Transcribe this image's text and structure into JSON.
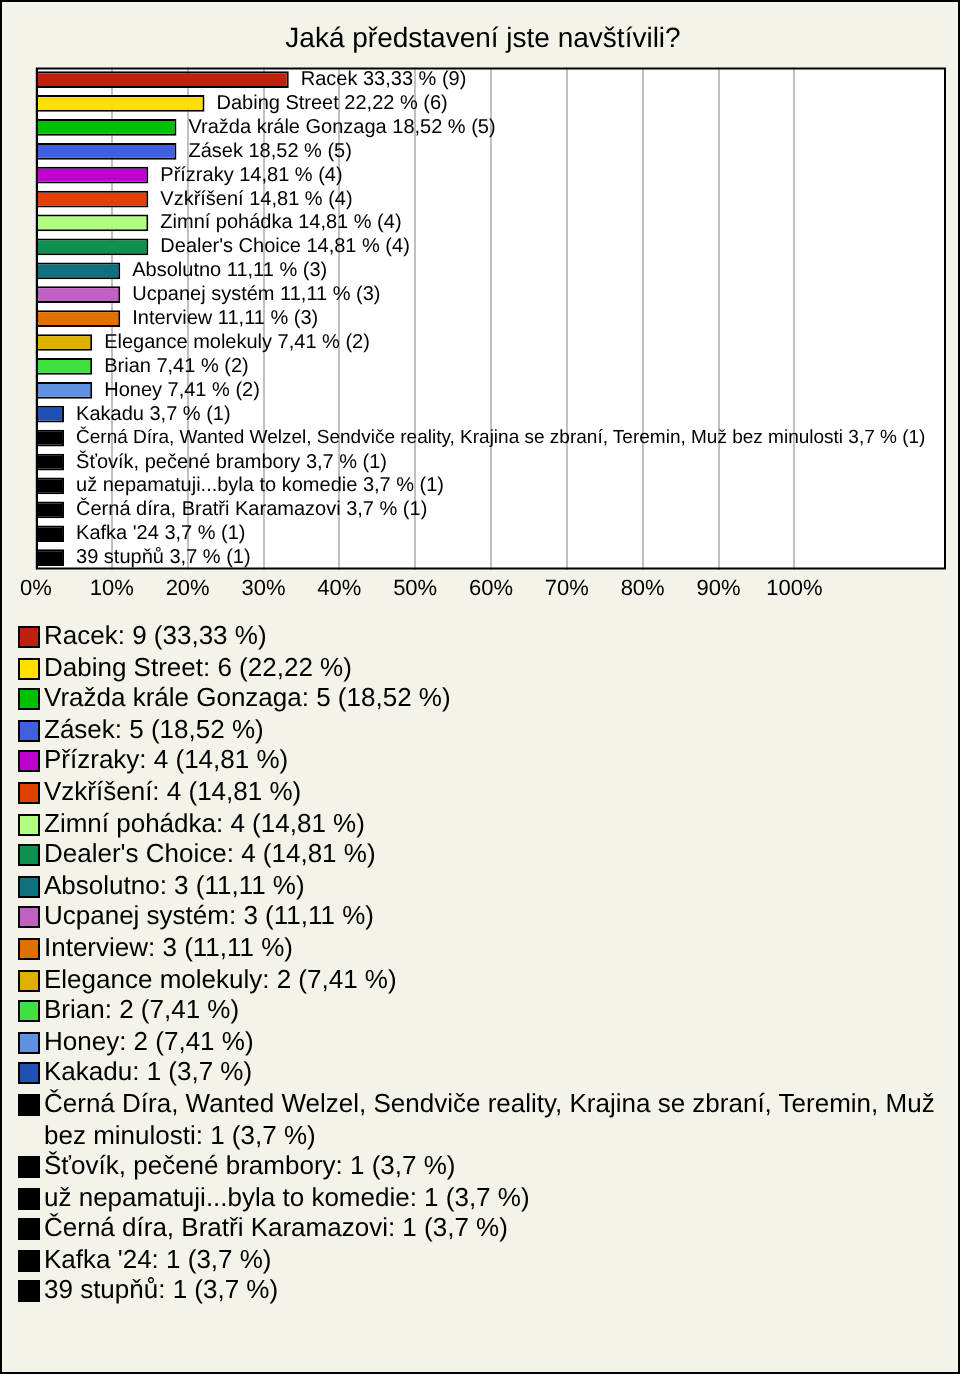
{
  "chart_data": {
    "type": "bar",
    "orientation": "horizontal",
    "title": "Jaká představení jste navštívili?",
    "categories": [
      null,
      null,
      null,
      null,
      null,
      null,
      null,
      null,
      null,
      null,
      null,
      null,
      null,
      null,
      null,
      null,
      null,
      null,
      null,
      null,
      null
    ],
    "values": [
      33.33,
      22.22,
      18.52,
      18.52,
      14.81,
      14.81,
      14.81,
      14.81,
      11.11,
      11.11,
      11.11,
      7.41,
      7.41,
      7.41,
      3.7,
      3.7,
      3.7,
      3.7,
      3.7,
      3.7,
      3.7
    ],
    "colors": [
      "#c0200c",
      "#ffe000",
      "#00c000",
      "#4060e0",
      "#c000d0",
      "#e04000",
      "#b0ff80",
      "#109050",
      "#107080",
      "#c060c0",
      "#e07000",
      "#e0b000",
      "#40e040",
      "#6090e0",
      "#2050b0",
      "#000000",
      "#000000",
      "#000000",
      "#000000",
      "#000000",
      "#000000"
    ],
    "value_labels": [
      "Racek 33,33 % (9)",
      "Dabing Street 22,22 % (6)",
      "Vražda krále Gonzaga 18,52 % (5)",
      "Zásek 18,52 % (5)",
      "Přízraky 14,81 % (4)",
      "Vzkříšení 14,81 % (4)",
      "Zimní pohádka 14,81 % (4)",
      "Dealer's Choice 14,81 % (4)",
      "Absolutno 11,11 % (3)",
      "Ucpanej systém 11,11 % (3)",
      "Interview 11,11 % (3)",
      "Elegance molekuly 7,41 % (2)",
      "Brian 7,41 % (2)",
      "Honey 7,41 % (2)",
      "Kakadu 3,7 % (1)",
      "Černá Díra, Wanted Welzel, Sendviče reality, Krajina se zbraní, Teremin, Muž bez minulosti 3,7 % (1)",
      "Šťovík, pečené brambory 3,7 % (1)",
      "už nepamatuji...byla to komedie 3,7 % (1)",
      "Černá díra, Bratři Karamazovi 3,7 % (1)",
      "Kafka '24 3,7 % (1)",
      "39 stupňů 3,7 % (1)"
    ],
    "annotations": [
      "Racek: 9 (33,33 %)",
      "Dabing Street: 6 (22,22 %)",
      "Vražda krále Gonzaga: 5 (18,52 %)",
      "Zásek: 5 (18,52 %)",
      "Přízraky: 4 (14,81 %)",
      "Vzkříšení: 4 (14,81 %)",
      "Zimní pohádka: 4 (14,81 %)",
      "Dealer's Choice: 4 (14,81 %)",
      "Absolutno: 3 (11,11 %)",
      "Ucpanej systém: 3 (11,11 %)",
      "Interview: 3 (11,11 %)",
      "Elegance molekuly: 2 (7,41 %)",
      "Brian: 2 (7,41 %)",
      "Honey: 2 (7,41 %)",
      "Kakadu: 1 (3,7 %)",
      "Černá Díra, Wanted Welzel, Sendviče reality, Krajina se zbraní, Teremin, Muž bez minulosti: 1 (3,7 %)",
      "Šťovík, pečené brambory: 1 (3,7 %)",
      "už nepamatuji...byla to komedie: 1 (3,7 %)",
      "Černá díra, Bratři Karamazovi: 1 (3,7 %)",
      "Kafka '24: 1 (3,7 %)",
      "39 stupňů: 1 (3,7 %)"
    ],
    "xlim": [
      0,
      120
    ],
    "xticks": [
      {
        "value": 0,
        "label": "0%"
      },
      {
        "value": 10,
        "label": "10%"
      },
      {
        "value": 20,
        "label": "20%"
      },
      {
        "value": 30,
        "label": "30%"
      },
      {
        "value": 40,
        "label": "40%"
      },
      {
        "value": 50,
        "label": "50%"
      },
      {
        "value": 60,
        "label": "60%"
      },
      {
        "value": 70,
        "label": "70%"
      },
      {
        "value": 80,
        "label": "80%"
      },
      {
        "value": 90,
        "label": "90%"
      },
      {
        "value": 100,
        "label": "100%"
      }
    ],
    "grid": "x",
    "tick_labels": "x"
  }
}
